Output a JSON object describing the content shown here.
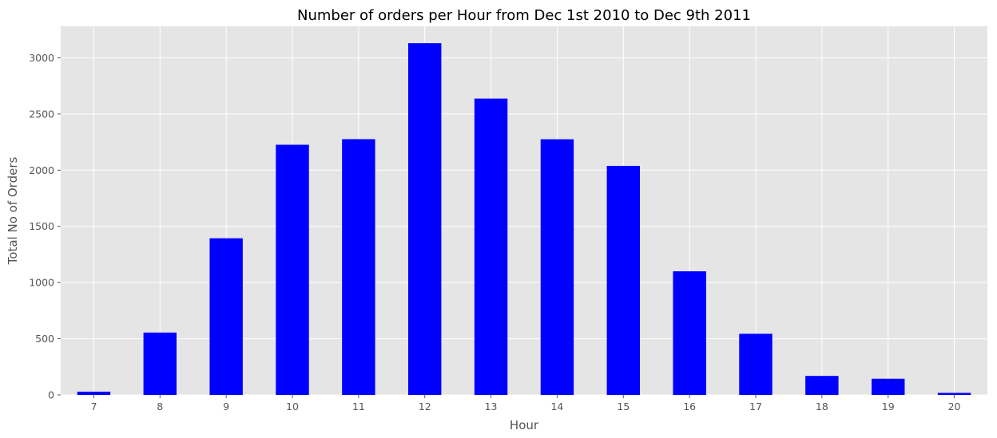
{
  "chart_data": {
    "type": "bar",
    "title": "Number of orders per Hour from Dec 1st 2010 to Dec 9th 2011",
    "xlabel": "Hour",
    "ylabel": "Total No of Orders",
    "categories": [
      "7",
      "8",
      "9",
      "10",
      "11",
      "12",
      "13",
      "14",
      "15",
      "16",
      "17",
      "18",
      "19",
      "20"
    ],
    "values": [
      29,
      555,
      1394,
      2226,
      2276,
      3130,
      2637,
      2275,
      2038,
      1100,
      544,
      169,
      144,
      18
    ],
    "ylim": [
      0,
      3280
    ],
    "yticks": [
      0,
      500,
      1000,
      1500,
      2000,
      2500,
      3000
    ],
    "grid": true,
    "legend": "none",
    "colors": {
      "bar": "#0000ff",
      "plot_background": "#e5e5e5",
      "grid": "#ffffff",
      "text": "#555555"
    }
  }
}
